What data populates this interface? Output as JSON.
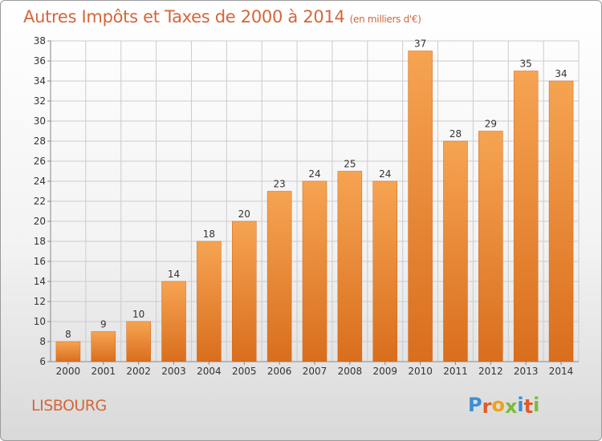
{
  "header": {
    "title": "Autres Impôts et Taxes de 2000 à 2014",
    "unit": "(en milliers d'€)"
  },
  "footer": {
    "city": "LISBOURG",
    "logo_text": "Proxiti"
  },
  "colors": {
    "title": "#d4663a",
    "bar_top": "#f6a452",
    "bar_bottom": "#d96e1d",
    "grid": "#cccccc",
    "logo_letters": [
      "#3b8fd4",
      "#e05a2b",
      "#f0a11a",
      "#7cbb3a",
      "#3b8fd4",
      "#e05a2b",
      "#7cbb3a"
    ]
  },
  "chart_data": {
    "type": "bar",
    "categories": [
      "2000",
      "2001",
      "2002",
      "2003",
      "2004",
      "2005",
      "2006",
      "2007",
      "2008",
      "2009",
      "2010",
      "2011",
      "2012",
      "2013",
      "2014"
    ],
    "values": [
      8,
      9,
      10,
      14,
      18,
      20,
      23,
      24,
      25,
      24,
      37,
      28,
      29,
      35,
      34
    ],
    "ylim": [
      6,
      38
    ],
    "yticks": [
      6,
      8,
      10,
      12,
      14,
      16,
      18,
      20,
      22,
      24,
      26,
      28,
      30,
      32,
      34,
      36,
      38
    ],
    "grid": true,
    "legend": "none"
  }
}
